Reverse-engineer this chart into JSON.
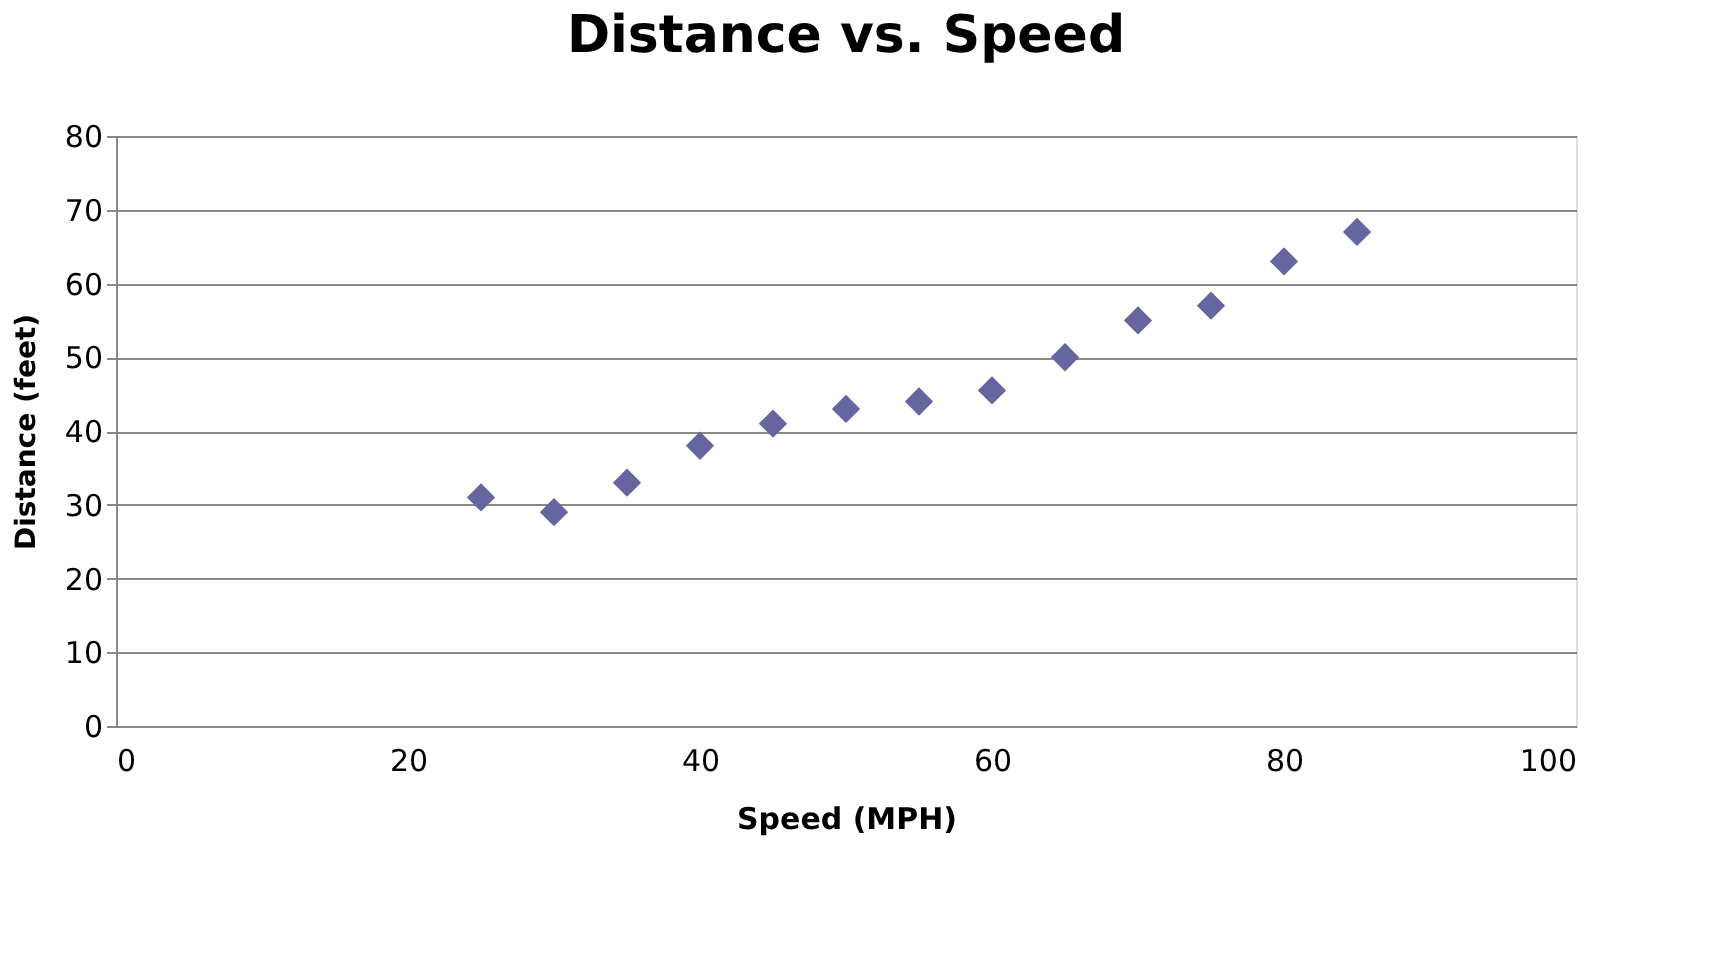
{
  "chart_data": {
    "type": "scatter",
    "title": "Distance vs. Speed",
    "xlabel": "Speed (MPH)",
    "ylabel": "Distance (feet)",
    "x": [
      25,
      30,
      35,
      40,
      45,
      50,
      55,
      60,
      65,
      70,
      75,
      80,
      85
    ],
    "series": [
      {
        "color": "#65659f",
        "values": [
          31,
          29,
          33,
          38,
          41,
          43,
          44,
          45.5,
          50,
          55,
          57,
          63,
          67
        ]
      }
    ],
    "xlim": [
      0,
      100
    ],
    "xticks": [
      0,
      20,
      40,
      60,
      80,
      100
    ],
    "ylim": [
      0,
      80
    ],
    "yticks": [
      0,
      10,
      20,
      30,
      40,
      50,
      60,
      70,
      80
    ],
    "grid": "y",
    "marker": "diamond"
  }
}
